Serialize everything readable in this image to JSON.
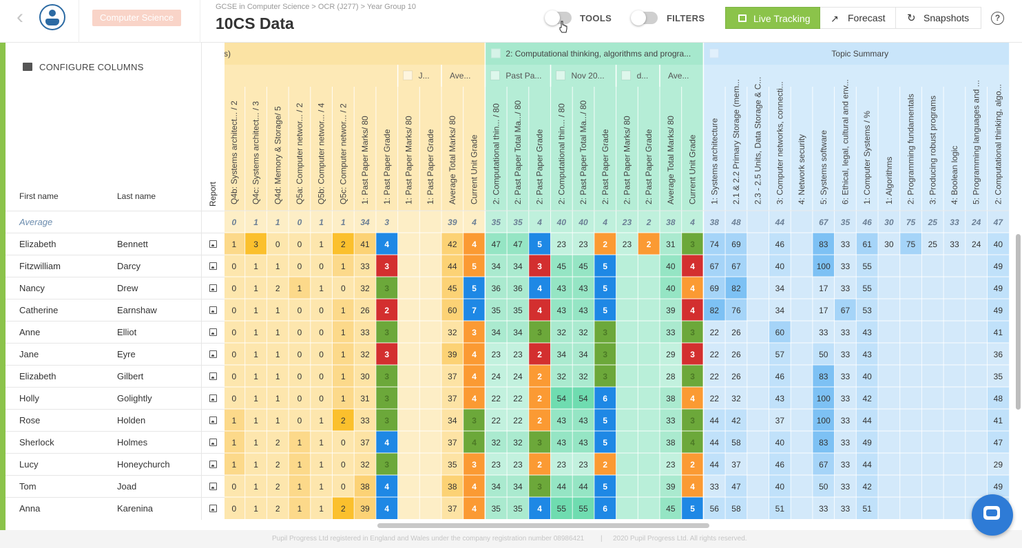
{
  "header": {
    "subject": "Computer Science",
    "breadcrumb": "GCSE in Computer Science > OCR (J277) > Year Group 10",
    "title": "10CS Data",
    "tools_label": "TOOLS",
    "filters_label": "FILTERS",
    "live_tracking": "Live Tracking",
    "forecast": "Forecast",
    "snapshots": "Snapshots",
    "help": "?"
  },
  "sidebar": {
    "configure": "CONFIGURE COLUMNS",
    "first_name": "First name",
    "last_name": "Last name",
    "report": "Report",
    "average": "Average"
  },
  "colors": {
    "accent_green": "#8bc34a",
    "grade_blue": "#1e88e5",
    "grade_red": "#d32f2f",
    "grade_green": "#6ca83a",
    "grade_orange": "#fb9a33",
    "yellow_dark": "#fbc02d"
  },
  "grid": {
    "groups": [
      {
        "label": "s)"
      },
      {
        "label": "2: Computational thinking, algorithms and progra..."
      },
      {
        "label": "Topic Summary"
      }
    ],
    "subgroups": [
      "J...",
      "Ave...",
      "Past Pa...",
      "Nov 20...",
      "d...",
      "Ave..."
    ],
    "columns": [
      "Q4b: Systems architect... / 2",
      "Q4c: Systems architect... / 3",
      "Q4d: Memory & Storage/ 5",
      "Q5a: Computer networ... / 2",
      "Q5b: Computer networ... / 4",
      "Q5c: Computer networ... / 2",
      "1: Past Paper Marks/ 80",
      "1: Past Paper Grade",
      "1: Past Paper Marks/ 80",
      "1: Past Paper Grade",
      "Average Total Marks/ 80",
      "Current Unit Grade",
      "2: Computational thin... / 80",
      "2: Past Paper Total Ma.../ 80",
      "2: Past Paper Grade",
      "2: Computational thin... / 80",
      "2: Past Paper Total Ma.../ 80",
      "2: Past Paper Grade",
      "2: Past Paper Marks/ 80",
      "2: Past Paper Grade",
      "Average Total Marks/ 80",
      "Current Unit Grade",
      "1: Systems architecture",
      "2.1 & 2.2 Primary Storage (mem...",
      "2.3 - 2.5 Units, Data Storage & C...",
      "3: Computer networks, connecti...",
      "4: Network security",
      "5: Systems software",
      "6: Ethical, legal, cultural and env...",
      "1: Computer Systems / %",
      "1: Algorithms",
      "2: Programming fundamentals",
      "3: Producing robust programs",
      "4: Boolean logic",
      "5: Programming languages and ...",
      "2: Computational thinking, algo..."
    ],
    "average": [
      "0",
      "1",
      "1",
      "0",
      "1",
      "1",
      "34",
      "3",
      "",
      "",
      "39",
      "4",
      "35",
      "35",
      "4",
      "40",
      "40",
      "4",
      "23",
      "2",
      "38",
      "4",
      "38",
      "48",
      "",
      "44",
      "",
      "67",
      "35",
      "46",
      "30",
      "75",
      "25",
      "33",
      "24",
      "47"
    ],
    "students": [
      {
        "first": "Elizabeth",
        "last": "Bennett",
        "v": [
          "1",
          "3",
          "0",
          "0",
          "1",
          "2",
          "41",
          "4",
          "",
          "",
          "42",
          "4",
          "47",
          "47",
          "5",
          "23",
          "23",
          "2",
          "23",
          "2",
          "31",
          "3",
          "74",
          "69",
          "",
          "46",
          "",
          "83",
          "33",
          "61",
          "30",
          "75",
          "25",
          "33",
          "24",
          "40"
        ]
      },
      {
        "first": "Fitzwilliam",
        "last": "Darcy",
        "v": [
          "0",
          "1",
          "1",
          "0",
          "0",
          "1",
          "33",
          "3",
          "",
          "",
          "44",
          "5",
          "34",
          "34",
          "3",
          "45",
          "45",
          "5",
          "",
          "",
          "40",
          "4",
          "67",
          "67",
          "",
          "40",
          "",
          "100",
          "33",
          "55",
          "",
          "",
          "",
          "",
          "",
          "49"
        ]
      },
      {
        "first": "Nancy",
        "last": "Drew",
        "v": [
          "0",
          "1",
          "2",
          "1",
          "1",
          "0",
          "32",
          "3",
          "",
          "",
          "45",
          "5",
          "36",
          "36",
          "4",
          "43",
          "43",
          "5",
          "",
          "",
          "40",
          "4",
          "69",
          "82",
          "",
          "34",
          "",
          "17",
          "33",
          "55",
          "",
          "",
          "",
          "",
          "",
          "49"
        ]
      },
      {
        "first": "Catherine",
        "last": "Earnshaw",
        "v": [
          "0",
          "1",
          "1",
          "0",
          "0",
          "1",
          "26",
          "2",
          "",
          "",
          "60",
          "7",
          "35",
          "35",
          "4",
          "43",
          "43",
          "5",
          "",
          "",
          "39",
          "4",
          "82",
          "76",
          "",
          "34",
          "",
          "17",
          "67",
          "53",
          "",
          "",
          "",
          "",
          "",
          "49"
        ]
      },
      {
        "first": "Anne",
        "last": "Elliot",
        "v": [
          "0",
          "1",
          "1",
          "0",
          "0",
          "1",
          "33",
          "3",
          "",
          "",
          "32",
          "3",
          "34",
          "34",
          "3",
          "32",
          "32",
          "3",
          "",
          "",
          "33",
          "3",
          "22",
          "26",
          "",
          "60",
          "",
          "33",
          "33",
          "43",
          "",
          "",
          "",
          "",
          "",
          "41"
        ]
      },
      {
        "first": "Jane",
        "last": "Eyre",
        "v": [
          "0",
          "1",
          "1",
          "0",
          "0",
          "1",
          "32",
          "3",
          "",
          "",
          "39",
          "4",
          "23",
          "23",
          "2",
          "34",
          "34",
          "3",
          "",
          "",
          "29",
          "3",
          "22",
          "26",
          "",
          "57",
          "",
          "50",
          "33",
          "43",
          "",
          "",
          "",
          "",
          "",
          "36"
        ]
      },
      {
        "first": "Elizabeth",
        "last": "Gilbert",
        "v": [
          "0",
          "1",
          "1",
          "0",
          "0",
          "1",
          "30",
          "3",
          "",
          "",
          "37",
          "4",
          "24",
          "24",
          "2",
          "32",
          "32",
          "3",
          "",
          "",
          "28",
          "3",
          "22",
          "26",
          "",
          "46",
          "",
          "83",
          "33",
          "40",
          "",
          "",
          "",
          "",
          "",
          "35"
        ]
      },
      {
        "first": "Holly",
        "last": "Golightly",
        "v": [
          "0",
          "1",
          "1",
          "0",
          "0",
          "1",
          "31",
          "3",
          "",
          "",
          "37",
          "4",
          "22",
          "22",
          "2",
          "54",
          "54",
          "6",
          "",
          "",
          "38",
          "4",
          "22",
          "32",
          "",
          "43",
          "",
          "100",
          "33",
          "42",
          "",
          "",
          "",
          "",
          "",
          "48"
        ]
      },
      {
        "first": "Rose",
        "last": "Holden",
        "v": [
          "1",
          "1",
          "1",
          "0",
          "1",
          "2",
          "33",
          "3",
          "",
          "",
          "34",
          "3",
          "22",
          "22",
          "2",
          "43",
          "43",
          "5",
          "",
          "",
          "33",
          "3",
          "44",
          "42",
          "",
          "37",
          "",
          "100",
          "33",
          "44",
          "",
          "",
          "",
          "",
          "",
          "41"
        ]
      },
      {
        "first": "Sherlock",
        "last": "Holmes",
        "v": [
          "1",
          "1",
          "2",
          "1",
          "1",
          "0",
          "37",
          "4",
          "",
          "",
          "37",
          "4",
          "32",
          "32",
          "3",
          "43",
          "43",
          "5",
          "",
          "",
          "38",
          "4",
          "44",
          "58",
          "",
          "40",
          "",
          "83",
          "33",
          "49",
          "",
          "",
          "",
          "",
          "",
          "47"
        ]
      },
      {
        "first": "Lucy",
        "last": "Honeychurch",
        "v": [
          "1",
          "1",
          "2",
          "1",
          "1",
          "0",
          "32",
          "3",
          "",
          "",
          "35",
          "3",
          "23",
          "23",
          "2",
          "23",
          "23",
          "2",
          "",
          "",
          "23",
          "2",
          "44",
          "37",
          "",
          "46",
          "",
          "67",
          "33",
          "44",
          "",
          "",
          "",
          "",
          "",
          "29"
        ]
      },
      {
        "first": "Tom",
        "last": "Joad",
        "v": [
          "0",
          "1",
          "2",
          "1",
          "1",
          "0",
          "38",
          "4",
          "",
          "",
          "38",
          "4",
          "34",
          "34",
          "3",
          "44",
          "44",
          "5",
          "",
          "",
          "39",
          "4",
          "33",
          "47",
          "",
          "40",
          "",
          "50",
          "33",
          "42",
          "",
          "",
          "",
          "",
          "",
          "49"
        ]
      },
      {
        "first": "Anna",
        "last": "Karenina",
        "v": [
          "0",
          "1",
          "2",
          "1",
          "1",
          "2",
          "39",
          "4",
          "",
          "",
          "37",
          "4",
          "35",
          "35",
          "4",
          "55",
          "55",
          "6",
          "",
          "",
          "45",
          "5",
          "56",
          "58",
          "",
          "51",
          "",
          "33",
          "33",
          "51",
          "",
          "",
          "",
          "",
          "",
          "49"
        ]
      }
    ]
  },
  "footer": {
    "registration": "Pupil Progress Ltd registered in England and Wales under the company registration number 08986421",
    "separator": "|",
    "copyright": "2020 Pupil Progress Ltd. All rights reserved."
  }
}
